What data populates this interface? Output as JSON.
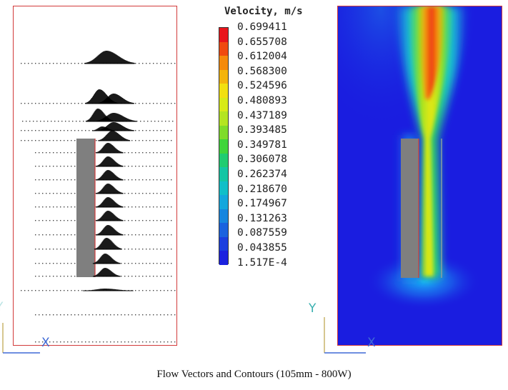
{
  "legend": {
    "title": "Velocity, m/s",
    "values": [
      "0.699411",
      "0.655708",
      "0.612004",
      "0.568300",
      "0.524596",
      "0.480893",
      "0.437189",
      "0.393485",
      "0.349781",
      "0.306078",
      "0.262374",
      "0.218670",
      "0.174967",
      "0.131263",
      "0.087559",
      "0.043855",
      "1.517E-4"
    ],
    "colors": [
      "#e8151b",
      "#f04a10",
      "#f58a0c",
      "#f4b40c",
      "#f2e00f",
      "#d8ea18",
      "#b4e521",
      "#7fdc2a",
      "#3fd53b",
      "#1fcc71",
      "#13c6a4",
      "#11bfc8",
      "#14a7dd",
      "#1786df",
      "#1a62df",
      "#1b3fdf",
      "#1c22df"
    ]
  },
  "axes_left": {
    "y_label": "Y",
    "x_label": "X"
  },
  "axes_right": {
    "y_label": "Y",
    "x_label": "X"
  },
  "caption": "Flow Vectors and Contours (105mm - 800W)"
}
